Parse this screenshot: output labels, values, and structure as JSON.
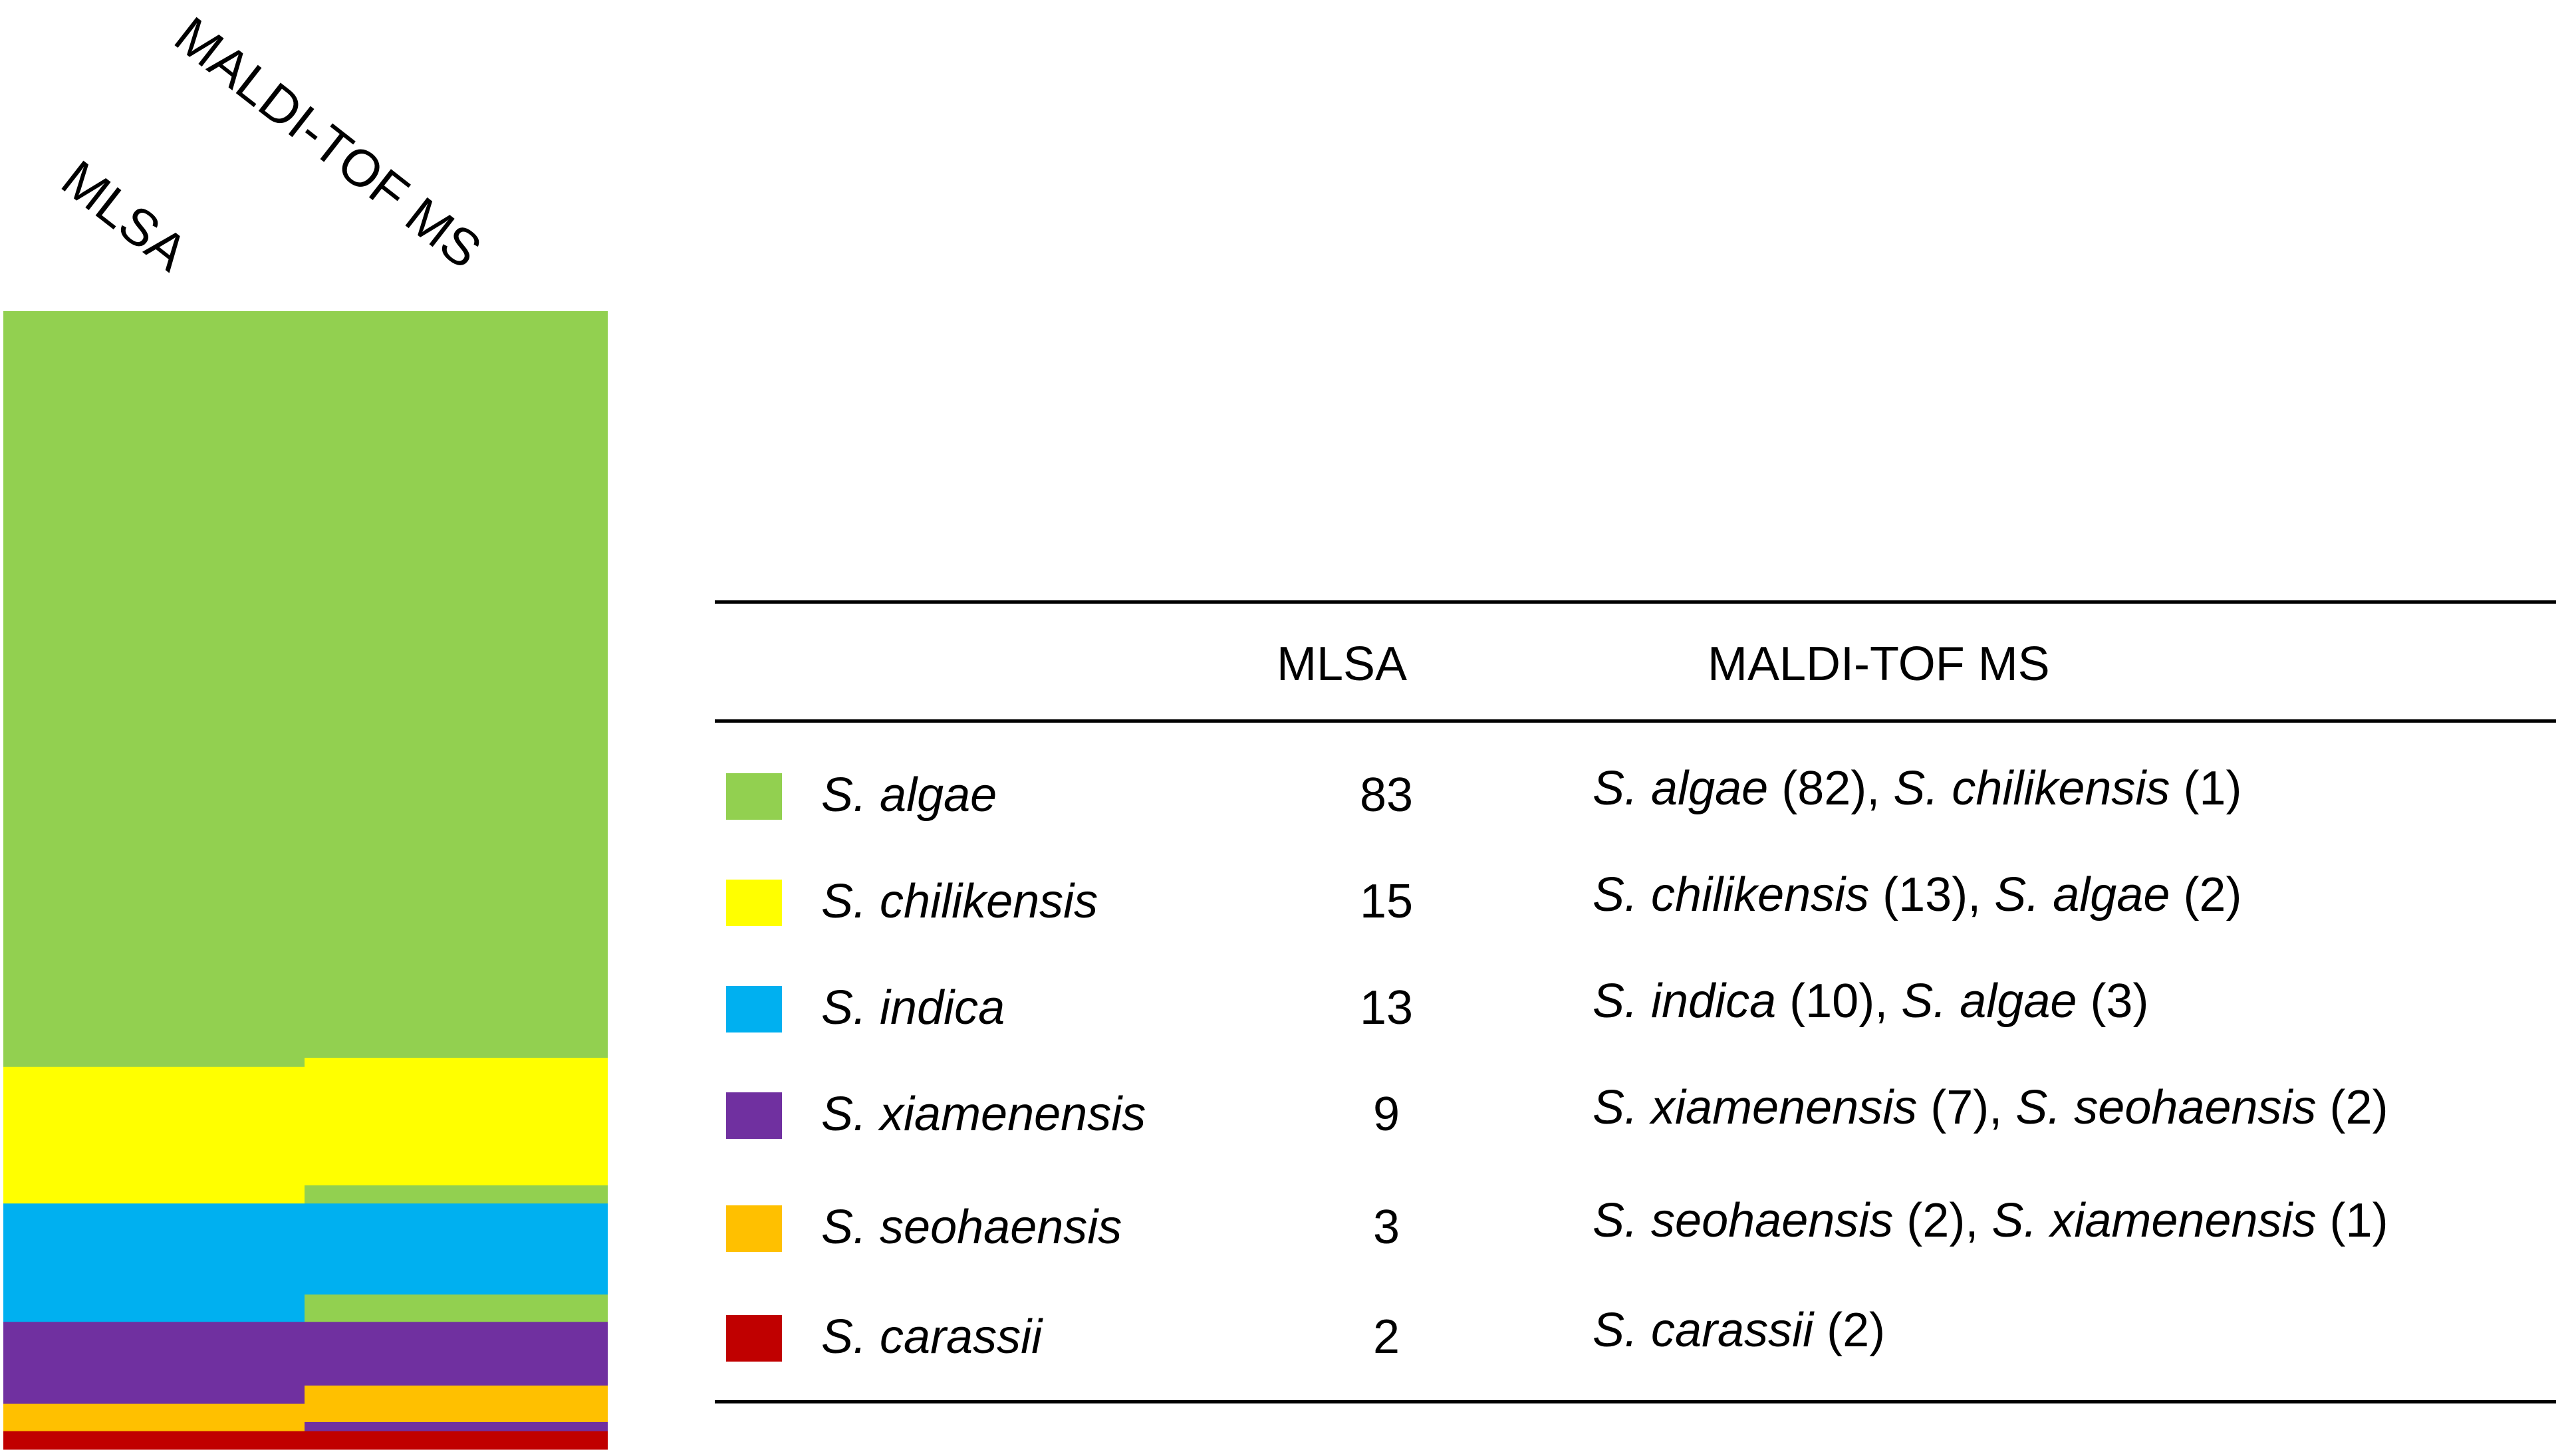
{
  "chart_data": {
    "type": "table",
    "columns": [
      "MLSA",
      "MALDI-TOF MS"
    ],
    "header": [
      "",
      "MLSA",
      "MALDI-TOF MS"
    ],
    "species_colors": {
      "S. algae": "#92d050",
      "S. chilikensis": "#ffff00",
      "S. indica": "#00b0f0",
      "S. xiamenensis": "#7030a0",
      "S. seohaensis": "#ffc000",
      "S. carassii": "#c00000"
    },
    "rows": [
      {
        "species": "S. algae",
        "mlsa": 83,
        "maldi": [
          {
            "species": "S. algae",
            "n": 82
          },
          {
            "species": "S. chilikensis",
            "n": 1
          }
        ]
      },
      {
        "species": "S. chilikensis",
        "mlsa": 15,
        "maldi": [
          {
            "species": "S. chilikensis",
            "n": 13
          },
          {
            "species": "S. algae",
            "n": 2
          }
        ]
      },
      {
        "species": "S. indica",
        "mlsa": 13,
        "maldi": [
          {
            "species": "S. indica",
            "n": 10
          },
          {
            "species": "S. algae",
            "n": 3
          }
        ]
      },
      {
        "species": "S. xiamenensis",
        "mlsa": 9,
        "maldi": [
          {
            "species": "S. xiamenensis",
            "n": 7
          },
          {
            "species": "S. seohaensis",
            "n": 2
          }
        ]
      },
      {
        "species": "S. seohaensis",
        "mlsa": 3,
        "maldi": [
          {
            "species": "S. seohaensis",
            "n": 2
          },
          {
            "species": "S. xiamenensis",
            "n": 1
          }
        ]
      },
      {
        "species": "S. carassii",
        "mlsa": 2,
        "maldi": [
          {
            "species": "S. carassii",
            "n": 2
          }
        ]
      }
    ]
  }
}
